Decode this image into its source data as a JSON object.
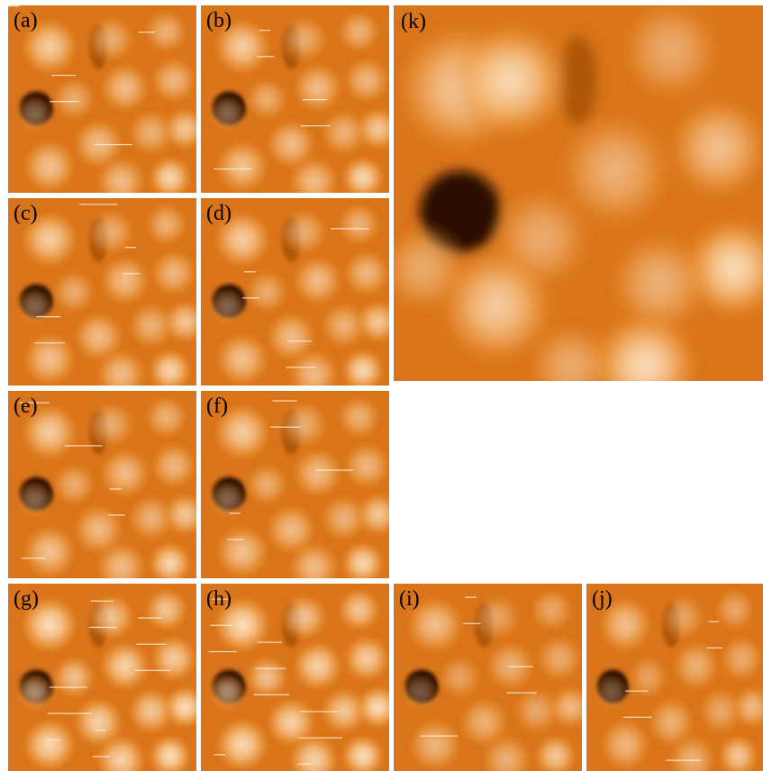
{
  "figure": {
    "panels": [
      {
        "id": "a",
        "label": "(a)"
      },
      {
        "id": "b",
        "label": "(b)"
      },
      {
        "id": "c",
        "label": "(c)"
      },
      {
        "id": "d",
        "label": "(d)"
      },
      {
        "id": "e",
        "label": "(e)"
      },
      {
        "id": "f",
        "label": "(f)"
      },
      {
        "id": "g",
        "label": "(g)"
      },
      {
        "id": "h",
        "label": "(h)"
      },
      {
        "id": "i",
        "label": "(i)"
      },
      {
        "id": "j",
        "label": "(j)"
      },
      {
        "id": "k",
        "label": "(k)"
      }
    ],
    "colors": {
      "dark": "#2a0c00",
      "base": "#d9741a",
      "mid": "#ee9a3c",
      "light": "#f8c890",
      "highlight": "#fde9d0"
    }
  }
}
